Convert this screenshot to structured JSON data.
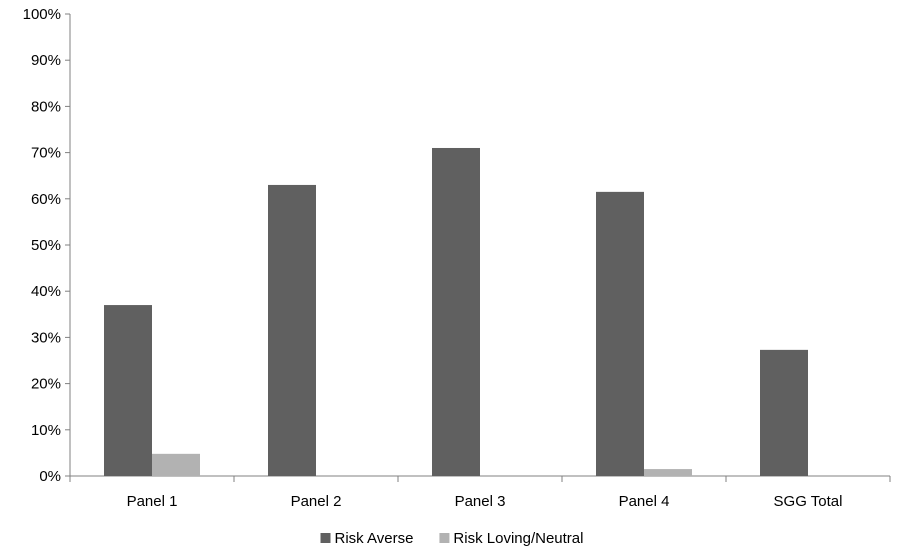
{
  "chart_data": {
    "type": "bar",
    "title": "",
    "xlabel": "",
    "ylabel": "",
    "categories": [
      "Panel 1",
      "Panel 2",
      "Panel 3",
      "Panel 4",
      "SGG Total"
    ],
    "series": [
      {
        "name": "Risk Averse",
        "values": [
          37,
          63,
          71,
          61.5,
          27.3
        ],
        "color": "#606060"
      },
      {
        "name": "Risk Loving/Neutral",
        "values": [
          4.8,
          0,
          0,
          1.5,
          0
        ],
        "color": "#b2b2b2"
      }
    ],
    "ylim": [
      0,
      100
    ],
    "yticks": [
      0,
      10,
      20,
      30,
      40,
      50,
      60,
      70,
      80,
      90,
      100
    ],
    "ytick_labels": [
      "0%",
      "10%",
      "20%",
      "30%",
      "40%",
      "50%",
      "60%",
      "70%",
      "80%",
      "90%",
      "100%"
    ],
    "grid": false,
    "legend_position": "bottom",
    "axis_color": "#808080"
  }
}
